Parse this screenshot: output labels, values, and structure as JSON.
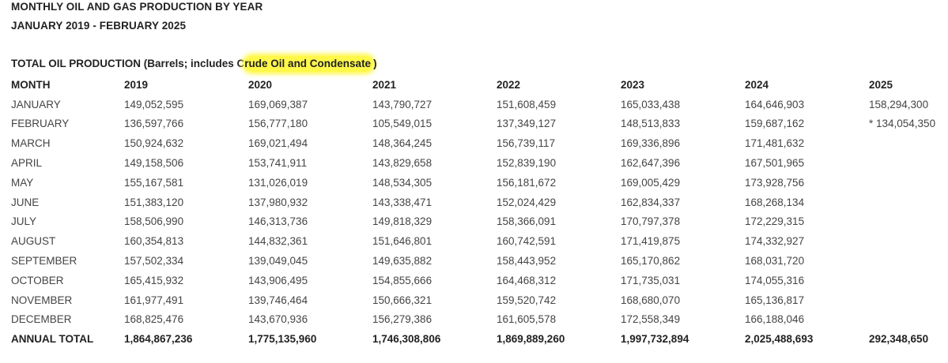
{
  "title": "MONTHLY OIL AND GAS PRODUCTION BY YEAR",
  "subtitle": "JANUARY 2019 - FEBRUARY 2025",
  "section": {
    "title_prefix": "TOTAL OIL PRODUCTION (Barrels; includes C",
    "title_highlight": "rude Oil and Condensate",
    "title_suffix": ")",
    "highlight_color": "#fff84a"
  },
  "table": {
    "headers": [
      "MONTH",
      "2019",
      "2020",
      "2021",
      "2022",
      "2023",
      "2024",
      "2025"
    ],
    "rows": [
      [
        "JANUARY",
        "149,052,595",
        "169,069,387",
        "143,790,727",
        "151,608,459",
        "165,033,438",
        "164,646,903",
        "158,294,300"
      ],
      [
        "FEBRUARY",
        "136,597,766",
        "156,777,180",
        "105,549,015",
        "137,349,127",
        "148,513,833",
        "159,687,162",
        "* 134,054,350"
      ],
      [
        "MARCH",
        "150,924,632",
        "169,021,494",
        "148,364,245",
        "156,739,117",
        "169,336,896",
        "171,481,632",
        ""
      ],
      [
        "APRIL",
        "149,158,506",
        "153,741,911",
        "143,829,658",
        "152,839,190",
        "162,647,396",
        "167,501,965",
        ""
      ],
      [
        "MAY",
        "155,167,581",
        "131,026,019",
        "148,534,305",
        "156,181,672",
        "169,005,429",
        "173,928,756",
        ""
      ],
      [
        "JUNE",
        "151,383,120",
        "137,980,932",
        "143,338,471",
        "152,024,429",
        "162,834,337",
        "168,268,134",
        ""
      ],
      [
        "JULY",
        "158,506,990",
        "146,313,736",
        "149,818,329",
        "158,366,091",
        "170,797,378",
        "172,229,315",
        ""
      ],
      [
        "AUGUST",
        "160,354,813",
        "144,832,361",
        "151,646,801",
        "160,742,591",
        "171,419,875",
        "174,332,927",
        ""
      ],
      [
        "SEPTEMBER",
        "157,502,334",
        "139,049,045",
        "149,635,882",
        "158,443,952",
        "165,170,862",
        "168,031,720",
        ""
      ],
      [
        "OCTOBER",
        "165,415,932",
        "143,906,495",
        "154,855,666",
        "164,468,312",
        "171,735,031",
        "174,055,316",
        ""
      ],
      [
        "NOVEMBER",
        "161,977,491",
        "139,746,464",
        "150,666,321",
        "159,520,742",
        "168,680,070",
        "165,136,817",
        ""
      ],
      [
        "DECEMBER",
        "168,825,476",
        "143,670,936",
        "156,279,386",
        "161,605,578",
        "172,558,349",
        "166,188,046",
        ""
      ]
    ],
    "total": [
      "ANNUAL TOTAL",
      "1,864,867,236",
      "1,775,135,960",
      "1,746,308,806",
      "1,869,889,260",
      "1,997,732,894",
      "2,025,488,693",
      "292,348,650"
    ]
  }
}
